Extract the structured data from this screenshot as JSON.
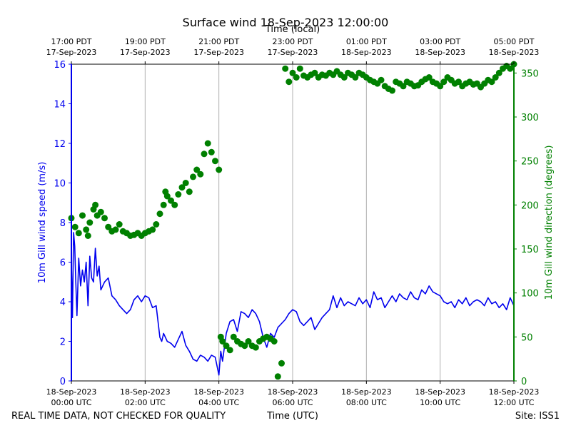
{
  "title": "Surface wind 18-Sep-2023 12:00:00",
  "footer": {
    "quality_note": "REAL TIME DATA, NOT CHECKED FOR QUALITY",
    "site": "Site: ISS1"
  },
  "colors": {
    "speed": "#0000ee",
    "direction": "#008000",
    "grid": "#b0b0b0"
  },
  "chart_data": {
    "type": "line",
    "title": "Surface wind 18-Sep-2023 12:00:00",
    "xlabel": "Time (UTC)",
    "x2label": "Time (local)",
    "ylabel": "10m Gill wind speed (m/s)",
    "y2label": "10m Gill wind direction (degrees)",
    "xlim": [
      0,
      12
    ],
    "ylim": [
      0,
      16
    ],
    "y2lim": [
      0,
      360
    ],
    "x_ticks": [
      {
        "x": 0,
        "line1": "18-Sep-2023",
        "line2": "00:00 UTC"
      },
      {
        "x": 2,
        "line1": "18-Sep-2023",
        "line2": "02:00 UTC"
      },
      {
        "x": 4,
        "line1": "18-Sep-2023",
        "line2": "04:00 UTC"
      },
      {
        "x": 6,
        "line1": "18-Sep-2023",
        "line2": "06:00 UTC"
      },
      {
        "x": 8,
        "line1": "18-Sep-2023",
        "line2": "08:00 UTC"
      },
      {
        "x": 10,
        "line1": "18-Sep-2023",
        "line2": "10:00 UTC"
      },
      {
        "x": 12,
        "line1": "18-Sep-2023",
        "line2": "12:00 UTC"
      }
    ],
    "x2_ticks": [
      {
        "x": 0,
        "line1": "17:00 PDT",
        "line2": "17-Sep-2023"
      },
      {
        "x": 2,
        "line1": "19:00 PDT",
        "line2": "17-Sep-2023"
      },
      {
        "x": 4,
        "line1": "21:00 PDT",
        "line2": "17-Sep-2023"
      },
      {
        "x": 6,
        "line1": "23:00 PDT",
        "line2": "17-Sep-2023"
      },
      {
        "x": 8,
        "line1": "01:00 PDT",
        "line2": "18-Sep-2023"
      },
      {
        "x": 10,
        "line1": "03:00 PDT",
        "line2": "18-Sep-2023"
      },
      {
        "x": 12,
        "line1": "05:00 PDT",
        "line2": "18-Sep-2023"
      }
    ],
    "y_ticks": [
      0,
      2,
      4,
      6,
      8,
      10,
      12,
      14,
      16
    ],
    "y2_ticks": [
      0,
      50,
      100,
      150,
      200,
      250,
      300,
      350
    ],
    "series": [
      {
        "name": "10m Gill wind speed (m/s)",
        "axis": "left",
        "style": "line",
        "x": [
          0,
          0.03,
          0.06,
          0.09,
          0.12,
          0.15,
          0.2,
          0.25,
          0.3,
          0.35,
          0.4,
          0.45,
          0.5,
          0.55,
          0.6,
          0.65,
          0.7,
          0.75,
          0.8,
          0.9,
          1.0,
          1.1,
          1.2,
          1.3,
          1.4,
          1.5,
          1.6,
          1.7,
          1.8,
          1.9,
          2.0,
          2.1,
          2.2,
          2.3,
          2.4,
          2.45,
          2.5,
          2.6,
          2.7,
          2.8,
          2.9,
          3.0,
          3.1,
          3.2,
          3.3,
          3.4,
          3.5,
          3.6,
          3.7,
          3.8,
          3.9,
          4.0,
          4.05,
          4.1,
          4.2,
          4.3,
          4.4,
          4.5,
          4.6,
          4.7,
          4.8,
          4.9,
          5.0,
          5.1,
          5.2,
          5.3,
          5.4,
          5.5,
          5.6,
          5.7,
          5.8,
          5.9,
          6.0,
          6.1,
          6.2,
          6.3,
          6.4,
          6.5,
          6.6,
          6.7,
          6.8,
          6.9,
          7.0,
          7.1,
          7.2,
          7.3,
          7.4,
          7.5,
          7.6,
          7.7,
          7.8,
          7.9,
          8.0,
          8.1,
          8.2,
          8.3,
          8.4,
          8.5,
          8.6,
          8.7,
          8.8,
          8.9,
          9.0,
          9.1,
          9.2,
          9.3,
          9.4,
          9.5,
          9.6,
          9.7,
          9.8,
          9.9,
          10.0,
          10.1,
          10.2,
          10.3,
          10.4,
          10.5,
          10.6,
          10.7,
          10.8,
          10.9,
          11.0,
          11.1,
          11.2,
          11.3,
          11.4,
          11.5,
          11.6,
          11.7,
          11.8,
          11.9,
          12.0
        ],
        "values": [
          6.0,
          3.2,
          7.5,
          6.8,
          5.0,
          3.3,
          6.2,
          4.8,
          5.6,
          5.0,
          6.0,
          3.8,
          6.3,
          5.2,
          5.0,
          6.7,
          5.3,
          5.8,
          4.6,
          5.0,
          5.2,
          4.3,
          4.1,
          3.8,
          3.6,
          3.4,
          3.6,
          4.1,
          4.3,
          4.0,
          4.3,
          4.2,
          3.7,
          3.8,
          2.2,
          2.0,
          2.4,
          2.0,
          1.9,
          1.7,
          2.1,
          2.5,
          1.8,
          1.5,
          1.1,
          1.0,
          1.3,
          1.2,
          1.0,
          1.3,
          1.2,
          0.3,
          1.5,
          1.0,
          2.4,
          3.0,
          3.1,
          2.5,
          3.5,
          3.4,
          3.2,
          3.6,
          3.4,
          3.0,
          2.2,
          1.7,
          2.4,
          2.2,
          2.7,
          2.9,
          3.1,
          3.4,
          3.6,
          3.5,
          3.0,
          2.8,
          3.0,
          3.2,
          2.6,
          2.9,
          3.2,
          3.4,
          3.6,
          4.3,
          3.7,
          4.2,
          3.8,
          4.0,
          3.9,
          3.8,
          4.2,
          3.9,
          4.1,
          3.7,
          4.5,
          4.1,
          4.2,
          3.7,
          4.0,
          4.3,
          4.0,
          4.4,
          4.2,
          4.1,
          4.5,
          4.2,
          4.1,
          4.6,
          4.4,
          4.8,
          4.5,
          4.4,
          4.3,
          4.0,
          3.9,
          4.0,
          3.7,
          4.1,
          3.9,
          4.2,
          3.8,
          4.0,
          4.1,
          4.0,
          3.8,
          4.2,
          3.9,
          4.0,
          3.7,
          3.9,
          3.6,
          4.2,
          3.8
        ]
      },
      {
        "name": "10m Gill wind direction (degrees)",
        "axis": "right",
        "style": "points",
        "x": [
          0.0,
          0.1,
          0.2,
          0.3,
          0.4,
          0.45,
          0.5,
          0.6,
          0.65,
          0.7,
          0.8,
          0.9,
          1.0,
          1.1,
          1.2,
          1.3,
          1.4,
          1.5,
          1.6,
          1.7,
          1.8,
          1.9,
          2.0,
          2.1,
          2.2,
          2.3,
          2.4,
          2.5,
          2.55,
          2.6,
          2.7,
          2.8,
          2.9,
          3.0,
          3.1,
          3.2,
          3.3,
          3.4,
          3.5,
          3.6,
          3.7,
          3.8,
          3.9,
          4.0,
          4.05,
          4.1,
          4.2,
          4.3,
          4.4,
          4.5,
          4.6,
          4.7,
          4.8,
          4.9,
          5.0,
          5.1,
          5.2,
          5.3,
          5.4,
          5.5,
          5.6,
          5.7,
          5.8,
          5.9,
          6.0,
          6.1,
          6.2,
          6.3,
          6.4,
          6.5,
          6.6,
          6.7,
          6.8,
          6.9,
          7.0,
          7.1,
          7.2,
          7.3,
          7.4,
          7.5,
          7.6,
          7.7,
          7.8,
          7.9,
          8.0,
          8.1,
          8.2,
          8.3,
          8.4,
          8.5,
          8.6,
          8.7,
          8.8,
          8.9,
          9.0,
          9.1,
          9.2,
          9.3,
          9.4,
          9.5,
          9.6,
          9.7,
          9.8,
          9.9,
          10.0,
          10.1,
          10.2,
          10.3,
          10.4,
          10.5,
          10.6,
          10.7,
          10.8,
          10.9,
          11.0,
          11.1,
          11.2,
          11.3,
          11.4,
          11.5,
          11.6,
          11.7,
          11.8,
          11.9,
          12.0
        ],
        "values": [
          185,
          175,
          168,
          188,
          172,
          165,
          180,
          195,
          200,
          188,
          192,
          185,
          175,
          170,
          172,
          178,
          170,
          168,
          165,
          166,
          168,
          165,
          168,
          170,
          172,
          178,
          190,
          200,
          215,
          210,
          205,
          200,
          212,
          220,
          225,
          215,
          232,
          240,
          235,
          258,
          270,
          260,
          250,
          240,
          50,
          45,
          40,
          35,
          50,
          45,
          42,
          40,
          45,
          40,
          38,
          45,
          48,
          50,
          48,
          45,
          5,
          20,
          355,
          340,
          350,
          345,
          355,
          347,
          345,
          348,
          350,
          345,
          348,
          347,
          350,
          348,
          352,
          348,
          345,
          350,
          348,
          345,
          350,
          348,
          345,
          342,
          340,
          338,
          342,
          335,
          332,
          330,
          340,
          338,
          335,
          340,
          338,
          335,
          336,
          340,
          343,
          345,
          340,
          338,
          335,
          340,
          345,
          342,
          338,
          340,
          335,
          338,
          340,
          337,
          338,
          334,
          338,
          342,
          340,
          345,
          350,
          355,
          358,
          355,
          360
        ]
      }
    ]
  }
}
